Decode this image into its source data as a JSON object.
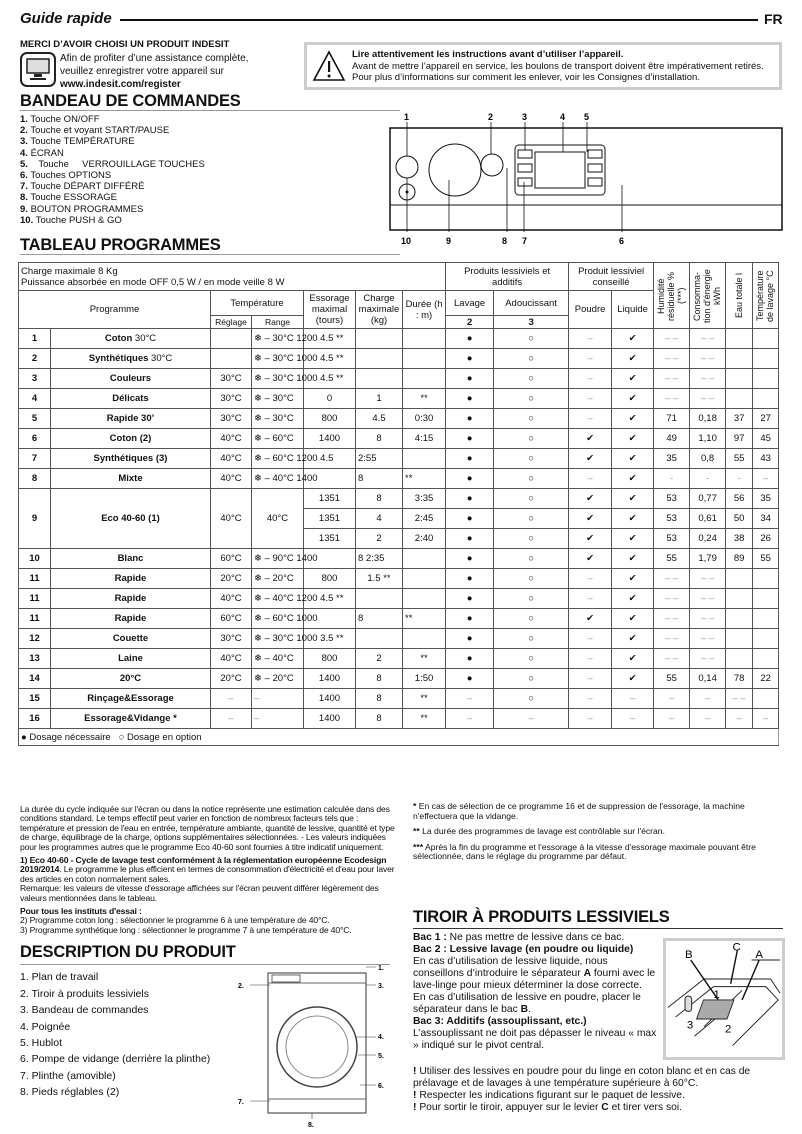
{
  "header": {
    "title": "Guide rapide",
    "lang": "FR"
  },
  "welcome": {
    "heading": "MERCI D’AVOIR CHOISI UN PRODUIT INDESIT",
    "lines": [
      "Afin de profiter d’une assistance complète,",
      "veuillez enregistrer votre appareil sur"
    ],
    "url": "www.indesit.com/register",
    "icon": "computer-icon"
  },
  "warning": {
    "icon": "warning-triangle-icon",
    "title": "Lire attentivement les instructions avant d’utiliser l’appareil.",
    "text": "Avant de mettre l’appareil en service, les boulons de transport doivent être impérativement retirés. Pour plus d’informations sur comment les enlever, voir les Consignes d’installation."
  },
  "bandeau": {
    "heading": "BANDEAU DE COMMANDES",
    "items": [
      {
        "n": "1.",
        "t": "Touche ON/OFF"
      },
      {
        "n": "2.",
        "t": "Touche et voyant START/PAUSE"
      },
      {
        "n": "3.",
        "t": "Touche TEMPÉRATURE"
      },
      {
        "n": "4.",
        "t": "ÉCRAN"
      },
      {
        "n": "5.",
        "t": "   Touche     VERROUILLAGE TOUCHES"
      },
      {
        "n": "6.",
        "t": "Touches OPTIONS"
      },
      {
        "n": "7.",
        "t": "Touche DÉPART DIFFÉRÉ"
      },
      {
        "n": "8.",
        "t": "Touche ESSORAGE"
      },
      {
        "n": "9.",
        "t": "BOUTON PROGRAMMES"
      },
      {
        "n": "10.",
        "t": "Touche PUSH & GO"
      }
    ],
    "diagram_labels": {
      "top": [
        "1",
        "2",
        "3",
        "4",
        "5"
      ],
      "bottom": [
        "10",
        "9",
        "8",
        "7",
        "6"
      ]
    }
  },
  "tableau": {
    "heading": "TABLEAU PROGRAMMES",
    "info": [
      "Charge maximale 8 Kg",
      "Puissance absorbée en mode OFF 0,5 W / en mode veille 8 W"
    ],
    "headers": {
      "programme": "Programme",
      "temperature": "Température",
      "reglage": "Réglage",
      "range": "Range",
      "essorage": "Essorage maximal (tours)",
      "charge": "Charge maximale (kg)",
      "duree": "Durée (h : m)",
      "produits": "Produits lessiviels et additifs",
      "lavage": "Lavage",
      "adoucissant": "Adoucissant",
      "bac2": "2",
      "bac3": "3",
      "conseille": "Produit lessiviel conseillé",
      "poudre": "Poudre",
      "liquide": "Liquide",
      "humidite": "Humidité résiduelle % (***)",
      "conso": "Consomma-tion d'énergie kWh",
      "eau": "Eau totale l",
      "temp_lavage": "Température de lavage °C"
    },
    "rows": [
      {
        "num": "1",
        "name": "Coton",
        "suffix": " 30°C",
        "reglage": "",
        "range": "❄ – 30°C 1200 4.5 **",
        "essorage": "",
        "charge": "",
        "duree": "",
        "lavage": "●",
        "adouc": "○",
        "poudre": "–",
        "liquide": "✔",
        "hum": "– –",
        "conso": "– –",
        "eau": "",
        "temp": ""
      },
      {
        "num": "2",
        "name": "Synthétiques",
        "suffix": " 30°C",
        "reglage": "",
        "range": "❄ – 30°C 1000 4.5 **",
        "essorage": "",
        "charge": "",
        "duree": "",
        "lavage": "●",
        "adouc": "○",
        "poudre": "–",
        "liquide": "✔",
        "hum": "– –",
        "conso": "– –",
        "eau": "",
        "temp": ""
      },
      {
        "num": "3",
        "name": "Couleurs",
        "suffix": "",
        "reglage": "30°C",
        "range": "❄ – 30°C 1000 4.5 **",
        "essorage": "",
        "charge": "",
        "duree": "",
        "lavage": "●",
        "adouc": "○",
        "poudre": "–",
        "liquide": "✔",
        "hum": "– –",
        "conso": "– –",
        "eau": "",
        "temp": ""
      },
      {
        "num": "4",
        "name": "Délicats",
        "suffix": "",
        "reglage": "30°C",
        "range": "❄ – 30°C",
        "essorage": "0",
        "charge": "1",
        "duree": "**",
        "lavage": "●",
        "adouc": "○",
        "poudre": "–",
        "liquide": "✔",
        "hum": "– –",
        "conso": "– –",
        "eau": "",
        "temp": ""
      },
      {
        "num": "5",
        "name": "Rapide 30’",
        "suffix": "",
        "reglage": "30°C",
        "range": "❄ – 30°C",
        "essorage": "800",
        "charge": "4.5",
        "duree": "0:30",
        "lavage": "●",
        "adouc": "○",
        "poudre": "–",
        "liquide": "✔",
        "hum": "71",
        "conso": "0,18",
        "eau": "37",
        "temp": "27"
      },
      {
        "num": "6",
        "name": "Coton (2)",
        "suffix": "",
        "reglage": "40°C",
        "range": "❄ – 60°C",
        "essorage": "1400",
        "charge": "8",
        "duree": "4:15",
        "lavage": "●",
        "adouc": "○",
        "poudre": "✔",
        "liquide": "✔",
        "hum": "49",
        "conso": "1,10",
        "eau": "97",
        "temp": "45"
      },
      {
        "num": "7",
        "name": "Synthétiques (3)",
        "suffix": "",
        "reglage": "40°C",
        "range": "❄ – 60°C 1200 4.5",
        "essorage": "",
        "charge": "2:55",
        "duree": "",
        "lavage": "●",
        "adouc": "○",
        "poudre": "✔",
        "liquide": "✔",
        "hum": "35",
        "conso": "0,8",
        "eau": "55",
        "temp": "43"
      },
      {
        "num": "8",
        "name": "Mixte",
        "suffix": "",
        "reglage": "40°C",
        "range": "❄ – 40°C 1400",
        "essorage": "",
        "charge": "8",
        "duree": "**",
        "lavage": "●",
        "adouc": "○",
        "poudre": "–",
        "liquide": "✔",
        "hum": "-",
        "conso": "-",
        "eau": "-",
        "temp": "–"
      },
      {
        "num": "9",
        "name": "Eco 40-60 (1)",
        "suffix": "",
        "reglage": "40°C",
        "range": "40°C",
        "sub": [
          {
            "essorage": "1351",
            "charge": "8",
            "duree": "3:35",
            "lavage": "●",
            "adouc": "○",
            "poudre": "✔",
            "liquide": "✔",
            "hum": "53",
            "conso": "0,77",
            "eau": "56",
            "temp": "35"
          },
          {
            "essorage": "1351",
            "charge": "4",
            "duree": "2:45",
            "lavage": "●",
            "adouc": "○",
            "poudre": "✔",
            "liquide": "✔",
            "hum": "53",
            "conso": "0,61",
            "eau": "50",
            "temp": "34"
          },
          {
            "essorage": "1351",
            "charge": "2",
            "duree": "2:40",
            "lavage": "●",
            "adouc": "○",
            "poudre": "✔",
            "liquide": "✔",
            "hum": "53",
            "conso": "0,24",
            "eau": "38",
            "temp": "26"
          }
        ]
      },
      {
        "num": "10",
        "name": "Blanc",
        "suffix": "",
        "reglage": "60°C",
        "range": "❄ – 90°C 1400",
        "essorage": "",
        "charge": "8          2:35",
        "duree": "",
        "lavage": "●",
        "adouc": "○",
        "poudre": "✔",
        "liquide": "✔",
        "hum": "55",
        "conso": "1,79",
        "eau": "89",
        "temp": "55"
      },
      {
        "num": "11",
        "name": "Rapide",
        "suffix": "",
        "reglage": "20°C",
        "range": "❄ – 20°C",
        "essorage": "800",
        "charge": "1.5 **",
        "duree": "",
        "lavage": "●",
        "adouc": "○",
        "poudre": "–",
        "liquide": "✔",
        "hum": "– –",
        "conso": "– –",
        "eau": "",
        "temp": ""
      },
      {
        "num": "11",
        "name": "Rapide",
        "suffix": "",
        "reglage": "40°C",
        "range": "❄ – 40°C 1200 4.5 **",
        "essorage": "",
        "charge": "",
        "duree": "",
        "lavage": "●",
        "adouc": "○",
        "poudre": "–",
        "liquide": "✔",
        "hum": "– –",
        "conso": "– –",
        "eau": "",
        "temp": ""
      },
      {
        "num": "11",
        "name": "Rapide",
        "suffix": "",
        "reglage": "60°C",
        "range": "❄ – 60°C 1000",
        "essorage": "",
        "charge": "8",
        "duree": "**",
        "lavage": "●",
        "adouc": "○",
        "poudre": "✔",
        "liquide": "✔",
        "hum": "– –",
        "conso": "– –",
        "eau": "",
        "temp": ""
      },
      {
        "num": "12",
        "name": "Couette",
        "suffix": "",
        "reglage": "30°C",
        "range": "❄ – 30°C 1000 3.5 **",
        "essorage": "",
        "charge": "",
        "duree": "",
        "lavage": "●",
        "adouc": "○",
        "poudre": "–",
        "liquide": "✔",
        "hum": "– –",
        "conso": "– –",
        "eau": "",
        "temp": ""
      },
      {
        "num": "13",
        "name": "Laine",
        "suffix": "",
        "reglage": "40°C",
        "range": "❄ – 40°C",
        "essorage": "800",
        "charge": "2",
        "duree": "**",
        "lavage": "●",
        "adouc": "○",
        "poudre": "–",
        "liquide": "✔",
        "hum": "– –",
        "conso": "– –",
        "eau": "",
        "temp": ""
      },
      {
        "num": "14",
        "name": "20°C",
        "suffix": "",
        "reglage": "20°C",
        "range": "❄ – 20°C",
        "essorage": "1400",
        "charge": "8",
        "duree": "1:50",
        "lavage": "●",
        "adouc": "○",
        "poudre": "–",
        "liquide": "✔",
        "hum": "55",
        "conso": "0,14",
        "eau": "78",
        "temp": "22"
      },
      {
        "num": "15",
        "name": "Rinçage&Essorage",
        "suffix": "",
        "reglage": "–",
        "range": "–",
        "essorage": "1400",
        "charge": "8",
        "duree": "**",
        "lavage": "–",
        "adouc": "○",
        "poudre": "–",
        "liquide": "–",
        "hum": "–",
        "conso": "–",
        "eau": "– –",
        "temp": ""
      },
      {
        "num": "16",
        "name": "Essorage&Vidange *",
        "suffix": "",
        "reglage": "–",
        "range": "–",
        "essorage": "1400",
        "charge": "8",
        "duree": "**",
        "lavage": "–",
        "adouc": "–",
        "poudre": "–",
        "liquide": "–",
        "hum": "–",
        "conso": "–",
        "eau": "–",
        "temp": "–"
      }
    ],
    "legend": {
      "filled": "Dosage nécessaire",
      "empty": "Dosage en option"
    }
  },
  "notes_left": {
    "p1": "La durée du cycle indiquée sur l'écran ou dans la notice représente une estimation calculée dans des conditions standard. Le temps effectif peut varier en fonction de nombreux facteurs tels que : température et pression de l'eau en entrée, température ambiante, quantité de lessive, quantité et type de charge, équilibrage de la charge, options supplémentaires sélectionnées. - Les valeurs indiquées pour les programmes autres que le programme Eco 40-60 sont fournies à titre indicatif uniquement.",
    "p2_bold": "1) Eco 40-60 - Cycle de lavage test conformément à la réglementation européenne Ecodesign 2019/2014",
    "p2": ". Le programme le plus efficient en termes de consommation d'électricité et d'eau pour laver des articles en coton normalement sales.",
    "p2_remark": "Remarque: les valeurs de vitesse d'essorage affichées sur l'écran peuvent différer légèrement des valeurs mentionnées dans le tableau.",
    "p3_head": "Pour tous les instituts d'essai :",
    "p3_items": [
      "2)  Programme coton long : sélectionner le programme 6 à une température de 40°C.",
      "3)  Programme synthétique long : sélectionner le programme 7 à une température de 40°C."
    ]
  },
  "notes_right": [
    {
      "mark": "*",
      "text": " En cas de sélection de ce programme 16 et de suppression de l'essorage, la machine n'effectuera que la vidange."
    },
    {
      "mark": "**",
      "text": " La durée des programmes de lavage est contrôlable sur l'écran."
    },
    {
      "mark": "***",
      "text": " Après la fin du programme et l'essorage à la vitesse d'essorage maximale pouvant être sélectionnée, dans le réglage du programme par défaut."
    }
  ],
  "description": {
    "heading": "DESCRIPTION DU PRODUIT",
    "items": [
      "1. Plan de travail",
      "2. Tiroir à produits lessiviels",
      "3. Bandeau de commandes",
      "4. Poignée",
      "5. Hublot",
      "6. Pompe de vidange (derrière la plinthe)",
      "7. Plinthe (amovible)",
      "8. Pieds réglables (2)"
    ],
    "diagram_labels": [
      "1.",
      "2.",
      "3.",
      "4.",
      "5.",
      "6.",
      "7.",
      "8."
    ]
  },
  "tiroir": {
    "heading": "TIROIR À PRODUITS LESSIVIELS",
    "bac1_b": "Bac 1 :",
    "bac1": " Ne pas mettre de lessive dans ce bac.",
    "bac2_b": "Bac 2 : Lessive lavage (en poudre ou liquide)",
    "bac2_t1": "En cas d’utilisation de lessive liquide, nous conseillons d’introduire le séparateur ",
    "bac2_A": "A",
    "bac2_t2": " fourni avec le lave-linge pour mieux déterminer la dose correcte.",
    "bac2_t3": "En cas d’utilisation de lessive en poudre, placer le séparateur dans le bac ",
    "bac2_B": "B",
    "bac2_t4": ".",
    "bac3_b": "Bac 3: Additifs (assouplissant, etc.)",
    "bac3": "L’assouplissant ne doit pas dépasser le niveau « max » indiqué sur le pivot central.",
    "warn": [
      "Utiliser des lessives en poudre pour du linge en coton blanc et en cas de prélavage et de lavages à une température supérieure à 60°C.",
      "Respecter les indications figurant sur le paquet de lessive."
    ],
    "warn3_a": "Pour sortir le tiroir, appuyer sur le levier ",
    "warn3_C": "C",
    "warn3_b": " et tirer vers soi.",
    "warn_mark": "!",
    "drawer_labels": {
      "A": "A",
      "B": "B",
      "C": "C",
      "bac1": "1",
      "bac2": "2",
      "bac3": "3"
    }
  }
}
